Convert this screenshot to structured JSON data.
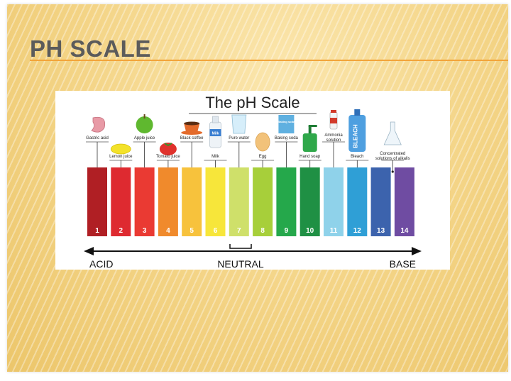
{
  "slide": {
    "title": "PH SCALE"
  },
  "figure": {
    "title": "The pH Scale",
    "arrow_labels": {
      "left": "ACID",
      "center": "NEUTRAL",
      "right": "BASE"
    }
  },
  "chart_data": {
    "type": "bar",
    "title": "The pH Scale",
    "categories": [
      "1",
      "2",
      "3",
      "4",
      "5",
      "6",
      "7",
      "8",
      "9",
      "10",
      "11",
      "12",
      "13",
      "14"
    ],
    "values": [
      1,
      1,
      1,
      1,
      1,
      1,
      1,
      1,
      1,
      1,
      1,
      1,
      1,
      1
    ],
    "colors": [
      "#b01f24",
      "#de2a30",
      "#ea3a33",
      "#f08a2c",
      "#f7c23c",
      "#f7e63a",
      "#cfe06a",
      "#a7cf3a",
      "#25a84b",
      "#1f9044",
      "#8fd2ea",
      "#2f9fd6",
      "#3c63ad",
      "#6f4ca2"
    ],
    "examples": [
      {
        "label": "Gastric acid",
        "ph": 1,
        "position": "top",
        "icon": "stomach-icon"
      },
      {
        "label": "Lemon juice",
        "ph": 2,
        "position": "bottom",
        "icon": "lemon-icon"
      },
      {
        "label": "Apple juice",
        "ph": 3,
        "position": "top",
        "icon": "apple-icon"
      },
      {
        "label": "Tomato juice",
        "ph": 4,
        "position": "bottom",
        "icon": "tomato-icon"
      },
      {
        "label": "Black coffee",
        "ph": 5,
        "position": "top",
        "icon": "coffee-cup-icon"
      },
      {
        "label": "Milk",
        "ph": 6,
        "position": "bottom",
        "icon": "milk-bottle-icon"
      },
      {
        "label": "Pure water",
        "ph": 7,
        "position": "top",
        "icon": "water-glass-icon"
      },
      {
        "label": "Egg",
        "ph": 8,
        "position": "bottom",
        "icon": "egg-icon"
      },
      {
        "label": "Baking soda",
        "ph": 9,
        "position": "top",
        "icon": "baking-soda-box-icon"
      },
      {
        "label": "Hand soap",
        "ph": 10,
        "position": "bottom",
        "icon": "soap-dispenser-icon"
      },
      {
        "label": "Ammonia solution",
        "ph": 11,
        "position": "top",
        "icon": "ammonia-bottle-icon"
      },
      {
        "label": "Bleach",
        "ph": 12,
        "position": "bottom",
        "icon": "bleach-bottle-icon"
      },
      {
        "label": "Concentrated solutions of alkalis",
        "ph": 13.5,
        "position": "bottom",
        "icon": "flask-icon"
      }
    ],
    "icon_text": {
      "milk": "Milk",
      "baking_soda": "Baking soda",
      "bleach": "BLEACH"
    },
    "accent": "#f2a43a"
  }
}
